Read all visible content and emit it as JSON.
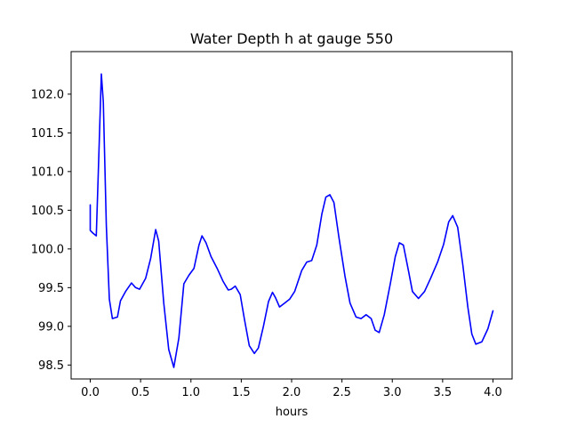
{
  "chart_data": {
    "type": "line",
    "title": "Water Depth h at gauge 550",
    "xlabel": "hours",
    "ylabel": "",
    "xlim": [
      -0.19,
      4.19
    ],
    "ylim": [
      98.32,
      102.55
    ],
    "x_ticks": [
      "0.0",
      "0.5",
      "1.0",
      "1.5",
      "2.0",
      "2.5",
      "3.0",
      "3.5",
      "4.0"
    ],
    "x_tick_values": [
      0.0,
      0.5,
      1.0,
      1.5,
      2.0,
      2.5,
      3.0,
      3.5,
      4.0
    ],
    "y_ticks": [
      "98.5",
      "99.0",
      "99.5",
      "100.0",
      "100.5",
      "101.0",
      "101.5",
      "102.0"
    ],
    "y_tick_values": [
      98.5,
      99.0,
      99.5,
      100.0,
      100.5,
      101.0,
      101.5,
      102.0
    ],
    "grid": false,
    "series": [
      {
        "color": "#0000ff",
        "x": [
          0.0,
          0.0,
          0.03,
          0.06,
          0.08,
          0.11,
          0.13,
          0.16,
          0.19,
          0.22,
          0.27,
          0.3,
          0.35,
          0.41,
          0.45,
          0.49,
          0.55,
          0.6,
          0.65,
          0.68,
          0.73,
          0.78,
          0.83,
          0.88,
          0.93,
          0.98,
          1.03,
          1.08,
          1.11,
          1.15,
          1.2,
          1.26,
          1.32,
          1.37,
          1.4,
          1.44,
          1.49,
          1.53,
          1.58,
          1.63,
          1.67,
          1.72,
          1.77,
          1.81,
          1.84,
          1.88,
          1.93,
          1.98,
          2.03,
          2.1,
          2.15,
          2.2,
          2.25,
          2.3,
          2.34,
          2.38,
          2.42,
          2.47,
          2.53,
          2.58,
          2.64,
          2.69,
          2.74,
          2.79,
          2.83,
          2.87,
          2.92,
          2.98,
          3.03,
          3.07,
          3.11,
          3.16,
          3.2,
          3.26,
          3.32,
          3.38,
          3.45,
          3.51,
          3.56,
          3.6,
          3.65,
          3.7,
          3.75,
          3.79,
          3.83,
          3.89,
          3.95,
          4.0
        ],
        "y": [
          100.57,
          100.24,
          100.2,
          100.17,
          101.0,
          102.26,
          101.9,
          100.3,
          99.35,
          99.1,
          99.12,
          99.33,
          99.45,
          99.56,
          99.5,
          99.48,
          99.62,
          99.88,
          100.25,
          100.1,
          99.3,
          98.7,
          98.47,
          98.85,
          99.55,
          99.66,
          99.75,
          100.05,
          100.17,
          100.08,
          99.9,
          99.75,
          99.58,
          99.47,
          99.48,
          99.52,
          99.41,
          99.1,
          98.75,
          98.65,
          98.72,
          99.0,
          99.32,
          99.44,
          99.37,
          99.25,
          99.3,
          99.35,
          99.45,
          99.72,
          99.83,
          99.85,
          100.05,
          100.45,
          100.67,
          100.7,
          100.6,
          100.15,
          99.65,
          99.3,
          99.12,
          99.1,
          99.15,
          99.1,
          98.95,
          98.92,
          99.15,
          99.55,
          99.9,
          100.08,
          100.05,
          99.72,
          99.45,
          99.36,
          99.45,
          99.62,
          99.83,
          100.06,
          100.35,
          100.43,
          100.28,
          99.8,
          99.25,
          98.9,
          98.77,
          98.8,
          98.97,
          99.2
        ]
      }
    ]
  }
}
